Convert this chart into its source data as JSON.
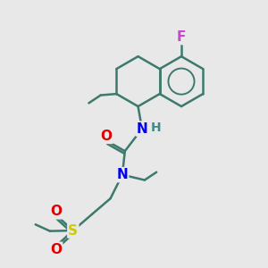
{
  "bg_color": "#e8e8e8",
  "bond_color": "#3d7a6e",
  "bond_width": 1.8,
  "atom_colors": {
    "F": "#cc44cc",
    "O": "#dd0000",
    "N": "#0000ee",
    "S": "#cccc00",
    "H": "#448888",
    "C": "#3d7a6e"
  },
  "font_size_atom": 11,
  "font_size_small": 9
}
